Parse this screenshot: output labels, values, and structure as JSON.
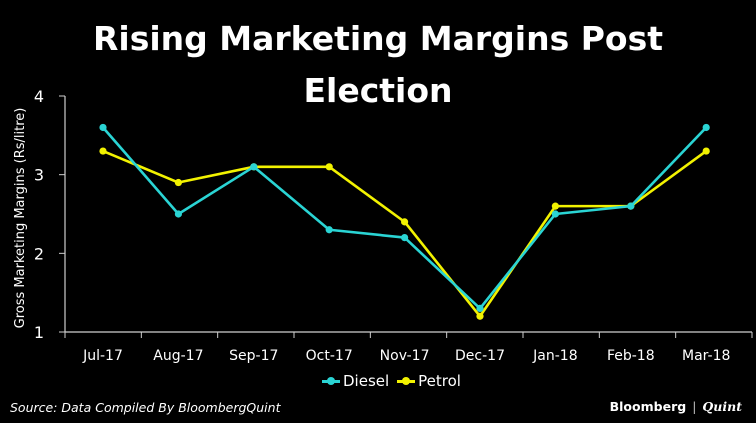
{
  "chart_data": {
    "type": "line",
    "title_line1": "Rising Marketing Margins Post",
    "title_line2": "Election",
    "ylabel": "Gross Marketing Margins (Rs/litre)",
    "xlabel": "",
    "ylim": [
      1,
      4
    ],
    "yticks": [
      "1",
      "2",
      "3",
      "4"
    ],
    "categories": [
      "Jul-17",
      "Aug-17",
      "Sep-17",
      "Oct-17",
      "Nov-17",
      "Dec-17",
      "Jan-18",
      "Feb-18",
      "Mar-18"
    ],
    "series": [
      {
        "name": "Diesel",
        "color": "#2ad4d4",
        "values": [
          3.6,
          2.5,
          3.1,
          2.3,
          2.2,
          1.3,
          2.5,
          2.6,
          3.6
        ]
      },
      {
        "name": "Petrol",
        "color": "#f2f200",
        "values": [
          3.3,
          2.9,
          3.1,
          3.1,
          2.4,
          1.2,
          2.6,
          2.6,
          3.3
        ]
      }
    ],
    "legend_position": "bottom",
    "grid": false
  },
  "footer": {
    "source": "Source: Data Compiled By BloombergQuint",
    "brand_1": "Bloomberg",
    "brand_sep": "|",
    "brand_2": "Quint"
  }
}
